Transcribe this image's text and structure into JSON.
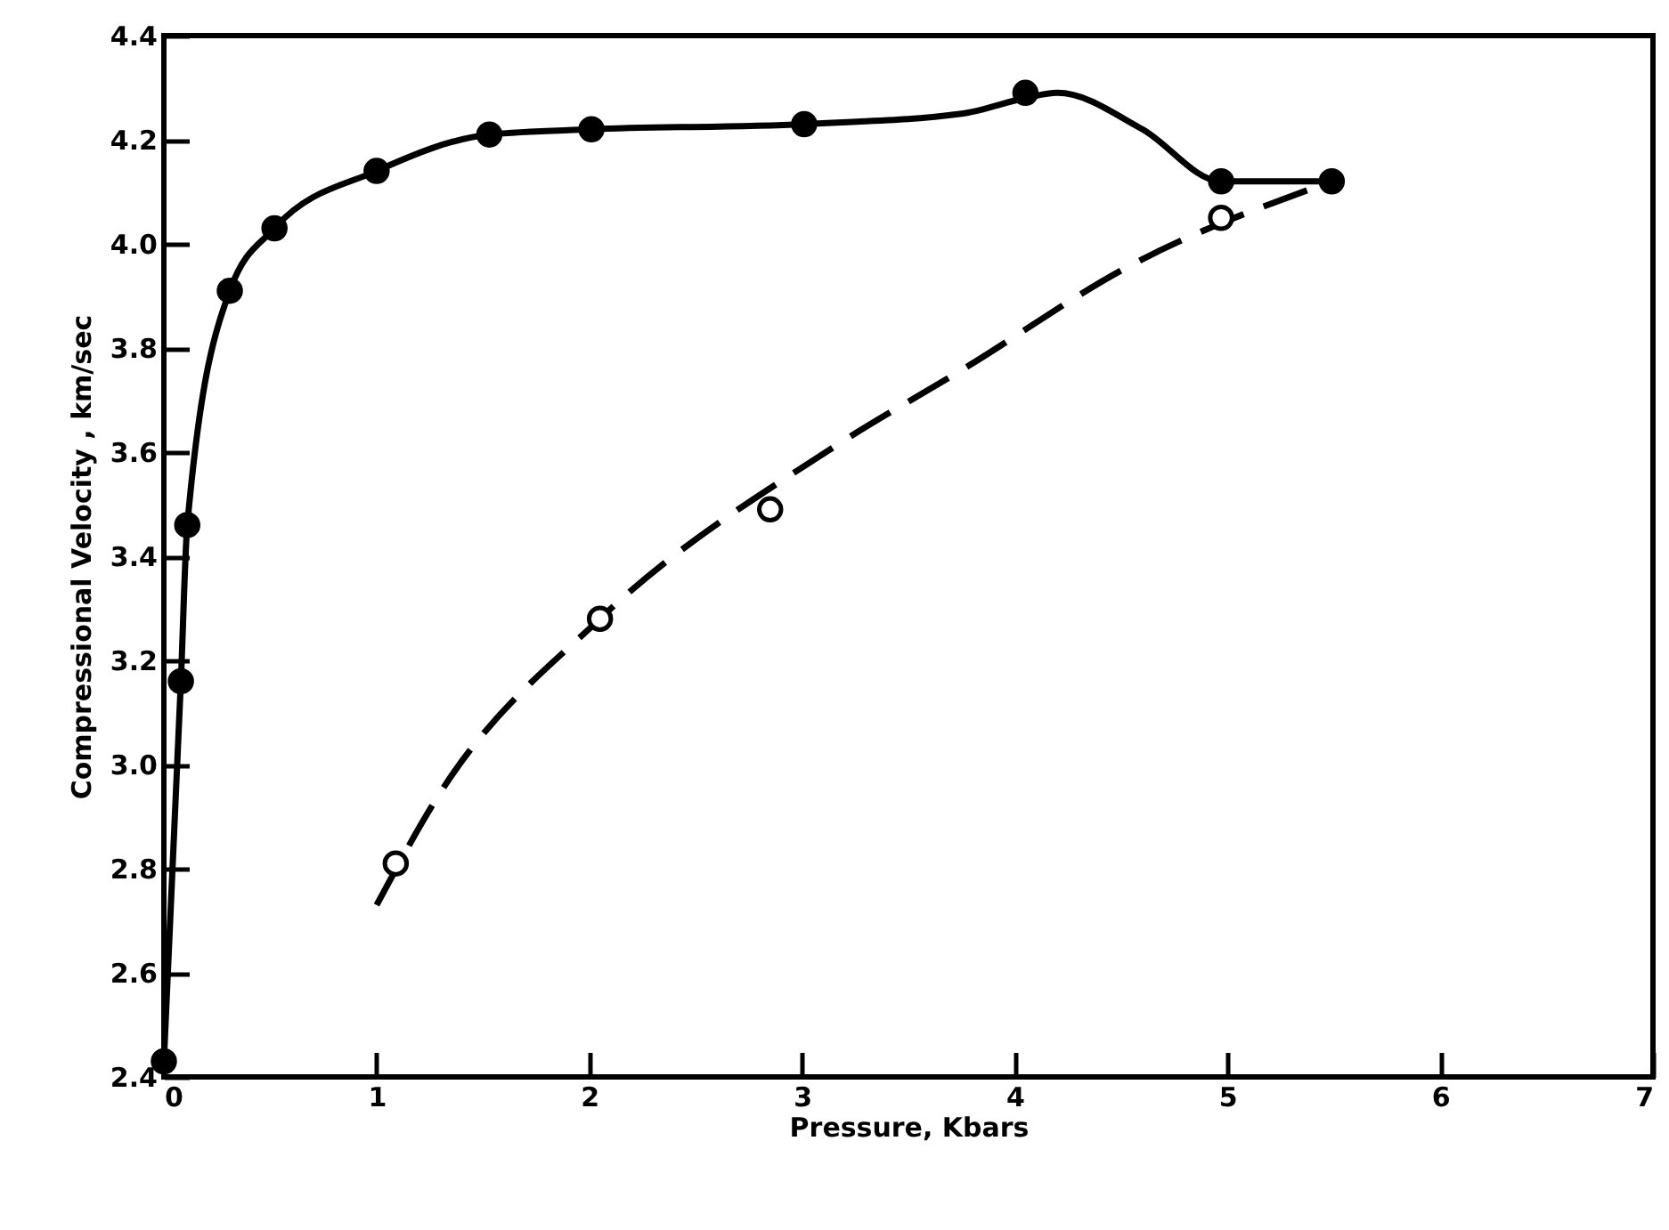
{
  "chart_data": {
    "type": "line",
    "xlabel": "Pressure, Kbars",
    "ylabel": "Compressional Velocity , km/sec",
    "xlim": [
      0,
      7
    ],
    "xticks": [
      0,
      1,
      2,
      3,
      4,
      5,
      6,
      7
    ],
    "ylim": [
      2.4,
      4.4
    ],
    "yticks": [
      2.4,
      2.6,
      2.8,
      {
        "value": 3,
        "label": "3.0"
      },
      3.2,
      3.4,
      3.6,
      3.8,
      {
        "value": 4,
        "label": "4.0"
      },
      4.2,
      4.4
    ],
    "grid": false,
    "series": [
      {
        "color": "#000000",
        "line_style": "solid",
        "marker": "none",
        "x": [
          0,
          0.08,
          0.11,
          0.31,
          0.52,
          1.0,
          1.53,
          2.01,
          3.01,
          3.75,
          4.05,
          4.2,
          4.6,
          4.97,
          5.49
        ],
        "values": [
          2.43,
          3.16,
          3.46,
          3.91,
          4.03,
          4.14,
          4.21,
          4.22,
          4.23,
          4.25,
          4.28,
          4.29,
          4.22,
          4.12,
          4.12
        ]
      },
      {
        "type": "scatter",
        "color": "#000000",
        "marker": "circle",
        "x": [
          0,
          0.08,
          0.11,
          0.31,
          0.52,
          1.0,
          1.53,
          2.01,
          3.01,
          4.05,
          4.97,
          5.49
        ],
        "values": [
          2.43,
          3.16,
          3.46,
          3.91,
          4.03,
          4.14,
          4.21,
          4.22,
          4.23,
          4.29,
          4.12,
          4.12
        ]
      },
      {
        "color": "#000000",
        "line_style": "dashed",
        "marker": "none",
        "x": [
          1.0,
          1.29,
          2.05,
          3.15,
          3.76,
          4.55,
          5.49
        ],
        "values": [
          2.73,
          2.94,
          3.28,
          3.61,
          3.76,
          3.96,
          4.12
        ]
      },
      {
        "type": "scatter",
        "color": "#ffffff",
        "marker": "circle",
        "x": [
          1.09,
          2.05,
          2.85,
          4.97
        ],
        "values": [
          2.81,
          3.28,
          3.49,
          4.05
        ]
      }
    ]
  }
}
